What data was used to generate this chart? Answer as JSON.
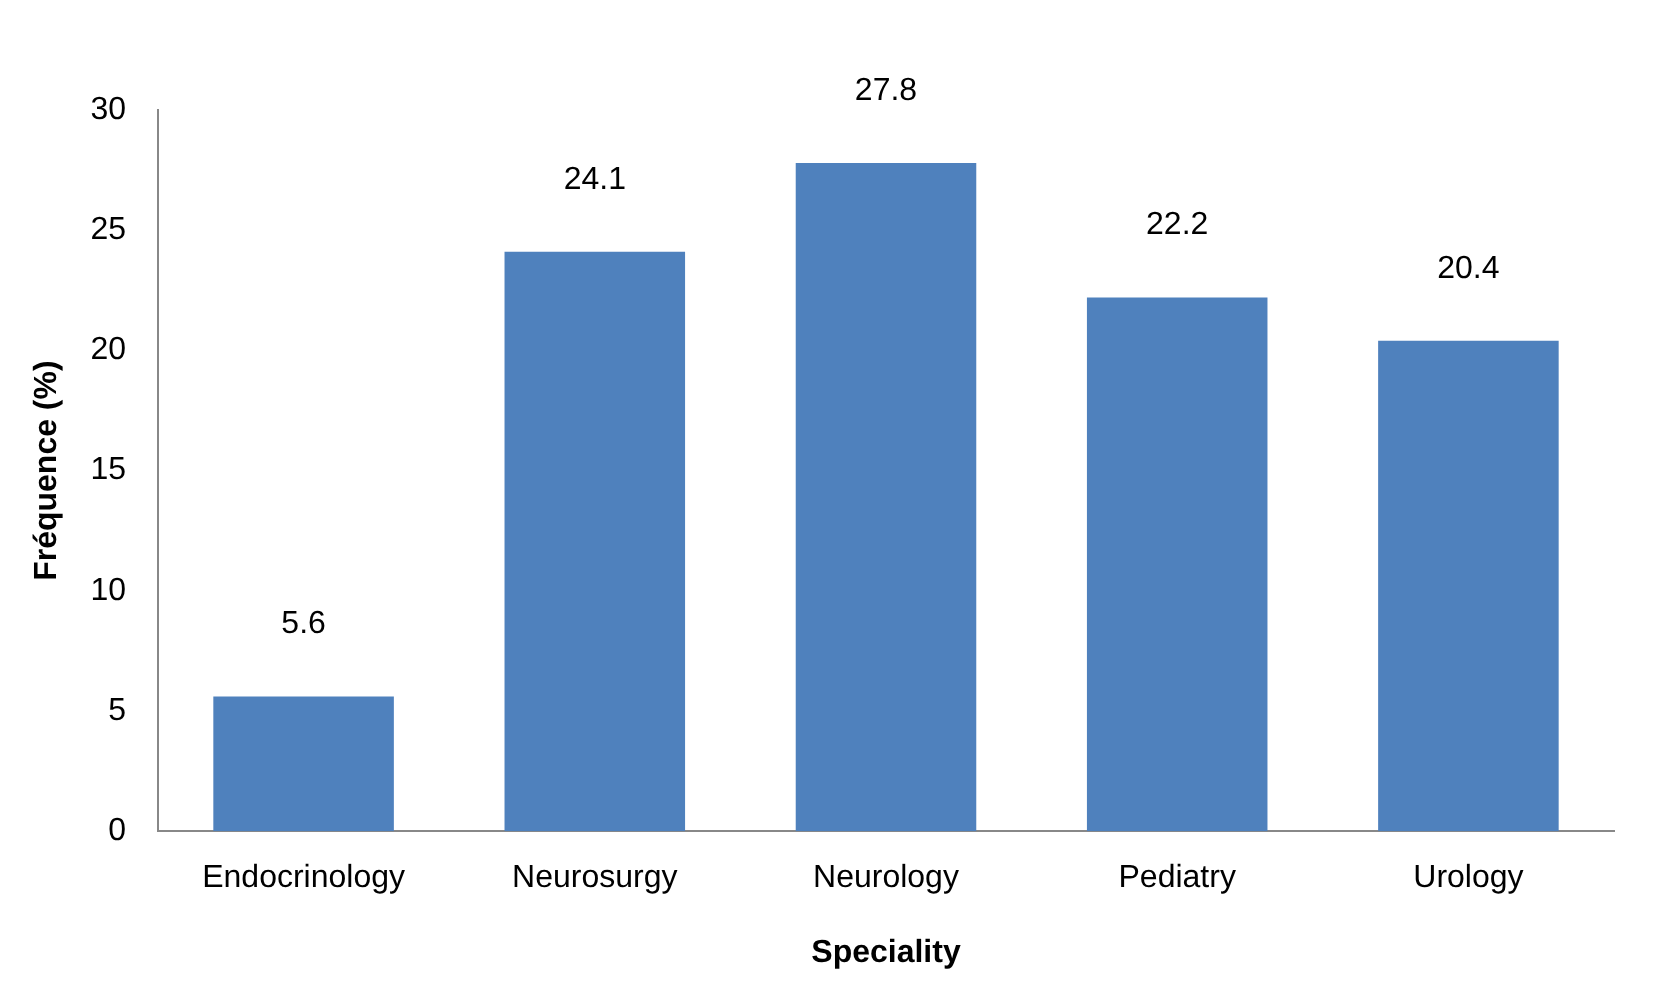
{
  "chart_data": {
    "type": "bar",
    "xlabel": "Speciality",
    "ylabel": "Fréquence (%)",
    "categories": [
      "Endocrinology",
      "Neurosurgy",
      "Neurology",
      "Pediatry",
      "Urology"
    ],
    "values": [
      5.6,
      24.1,
      27.8,
      22.2,
      20.4
    ],
    "color": "#4f81bd",
    "ylim": [
      0,
      30
    ],
    "yticks": [
      0,
      5,
      10,
      15,
      20,
      25,
      30
    ],
    "grid": false,
    "legend": false,
    "data_labels": true
  }
}
